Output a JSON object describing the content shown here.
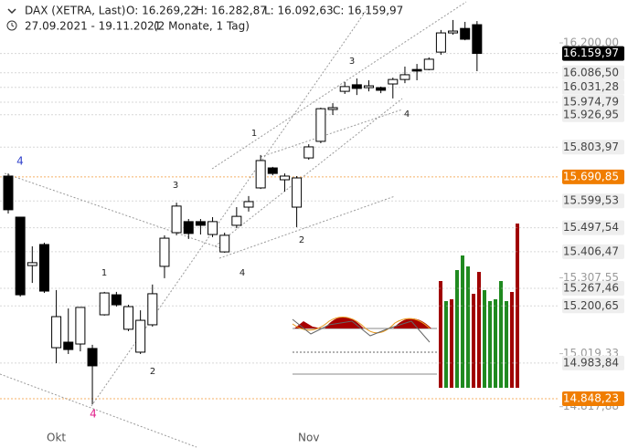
{
  "chart_data": {
    "type": "candlestick",
    "title": "DAX (XETRA, Last)",
    "ohlc_labels": [
      "O: 16.269,22",
      "H: 16.282,87",
      "L: 16.092,63",
      "C: 16.159,97"
    ],
    "date_range": "27.09.2021 - 19.11.2021",
    "period": "(2 Monate, 1 Tag)",
    "categories": [
      null,
      null,
      null,
      null,
      "Okt",
      null,
      null,
      null,
      null,
      null,
      null,
      null,
      null,
      null,
      null,
      null,
      null,
      null,
      null,
      null,
      null,
      null,
      null,
      null,
      null,
      "Nov",
      null,
      null,
      null,
      null,
      null,
      null,
      null,
      null,
      null,
      null,
      null,
      null,
      null,
      null
    ],
    "open": [
      15694,
      15538,
      15354,
      15434,
      15042,
      15063,
      15056,
      15039,
      15167,
      15243,
      15112,
      15025,
      15129,
      15351,
      15479,
      15521,
      15521,
      15472,
      15406,
      15507,
      15576,
      15649,
      15725,
      15680,
      15576,
      15763,
      15826,
      15947,
      16016,
      16041,
      16030,
      16030,
      16044,
      16061,
      16099,
      16099,
      16165,
      16238,
      16255,
      16269.22
    ],
    "high": [
      15704,
      15538,
      15427,
      15441,
      15261,
      15191,
      15195,
      15053,
      15254,
      15254,
      15205,
      15184,
      15282,
      15469,
      15593,
      15531,
      15531,
      15538,
      15479,
      15576,
      15618,
      15774,
      15729,
      15704,
      15694,
      15815,
      15954,
      15971,
      16051,
      16065,
      16058,
      16034,
      16068,
      16110,
      16120,
      16145,
      16249,
      16287,
      16280,
      16282.87
    ],
    "low": [
      15552,
      15236,
      15288,
      15250,
      14983,
      15018,
      15028,
      14827,
      15164,
      15198,
      15105,
      15018,
      15122,
      15306,
      15469,
      15455,
      15472,
      15462,
      15403,
      15496,
      15559,
      15645,
      15697,
      15635,
      15500,
      15756,
      15819,
      15926,
      16006,
      16002,
      16016,
      16009,
      15989,
      16047,
      16058,
      16096,
      16155,
      16231,
      16210,
      16092.63
    ],
    "close": [
      15566,
      15243,
      15365,
      15257,
      15160,
      15035,
      15195,
      14973,
      15250,
      15205,
      15198,
      15146,
      15247,
      15458,
      15580,
      15476,
      15507,
      15521,
      15469,
      15541,
      15597,
      15753,
      15704,
      15694,
      15687,
      15805,
      15950,
      15954,
      16034,
      16027,
      16037,
      16020,
      16061,
      16079,
      16093,
      16138,
      16238,
      16245,
      16214,
      16159.97
    ],
    "up_color": "#ffffff",
    "down_color": "#000000",
    "ylim": [
      14751,
      16363
    ],
    "yticks": [
      {
        "value": 16200,
        "label": "16.200,00"
      },
      {
        "value": 15307.55,
        "label": "15.307,55"
      },
      {
        "value": 15019.33,
        "label": "15.019,33"
      },
      {
        "value": 14817.88,
        "label": "14.817,88"
      }
    ],
    "price_markers": [
      {
        "value": 16159.97,
        "label": "16.159,97",
        "color": "#000000"
      },
      {
        "value": 16086.5,
        "label": "16.086,50",
        "color": "#eeeeee"
      },
      {
        "value": 16031.28,
        "label": "16.031,28",
        "color": "#eeeeee"
      },
      {
        "value": 15974.79,
        "label": "15.974,79",
        "color": "#eeeeee"
      },
      {
        "value": 15926.95,
        "label": "15.926,95",
        "color": "#eeeeee"
      },
      {
        "value": 15803.97,
        "label": "15.803,97",
        "color": "#eeeeee"
      },
      {
        "value": 15690.85,
        "label": "15.690,85",
        "color": "#f07d00"
      },
      {
        "value": 15599.53,
        "label": "15.599,53",
        "color": "#eeeeee"
      },
      {
        "value": 15497.54,
        "label": "15.497,54",
        "color": "#eeeeee"
      },
      {
        "value": 15406.47,
        "label": "15.406,47",
        "color": "#eeeeee"
      },
      {
        "value": 15267.46,
        "label": "15.267,46",
        "color": "#eeeeee"
      },
      {
        "value": 15200.65,
        "label": "15.200,65",
        "color": "#eeeeee"
      },
      {
        "value": 14983.84,
        "label": "14.983,84",
        "color": "#eeeeee"
      },
      {
        "value": 14848.23,
        "label": "14.848,23",
        "color": "#f07d00"
      }
    ],
    "annotations": [
      {
        "text": "4",
        "color": "#3344cc"
      },
      {
        "text": "3",
        "color": "#222222"
      },
      {
        "text": "4",
        "color": "#222222"
      },
      {
        "text": "1",
        "color": "#222222"
      },
      {
        "text": "3",
        "color": "#222222"
      },
      {
        "text": "4",
        "color": "#222222"
      },
      {
        "text": "2",
        "color": "#222222"
      },
      {
        "text": "1",
        "color": "#222222"
      },
      {
        "text": "2",
        "color": "#222222"
      },
      {
        "text": "4",
        "color": "#e0208a"
      }
    ]
  }
}
